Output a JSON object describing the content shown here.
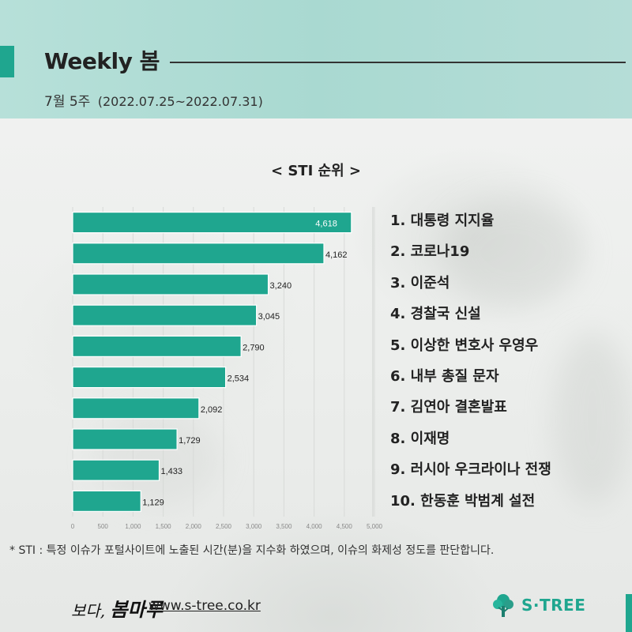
{
  "header": {
    "title": "Weekly 봄",
    "week": "7월 5주",
    "range": "(2022.07.25~2022.07.31)"
  },
  "chart_data": {
    "type": "bar",
    "orientation": "horizontal",
    "title": "< STI 순위 >",
    "categories": [
      "1",
      "2",
      "3",
      "4",
      "5",
      "6",
      "7",
      "8",
      "9",
      "10"
    ],
    "values": [
      4618,
      4162,
      3240,
      3045,
      2790,
      2534,
      2092,
      1729,
      1433,
      1129
    ],
    "value_labels": [
      "4,618",
      "4,162",
      "3,240",
      "3,045",
      "2,790",
      "2,534",
      "2,092",
      "1,729",
      "1,433",
      "1,129"
    ],
    "xlim": [
      0,
      5000
    ],
    "x_ticks": [
      0,
      500,
      1000,
      1500,
      2000,
      2500,
      3000,
      3500,
      4000,
      4500,
      5000
    ],
    "x_tick_labels": [
      "0",
      "500",
      "1,000",
      "1,500",
      "2,000",
      "2,500",
      "3,000",
      "3,500",
      "4,000",
      "4,500",
      "5,000"
    ],
    "grid": true,
    "bar_color": "#1fa68f"
  },
  "ranking": [
    "1. 대통령 지지율",
    "2. 코로나19",
    "3. 이준석",
    "4. 경찰국 신설",
    "5. 이상한 변호사 우영우",
    "6. 내부 총질 문자",
    "7. 김연아 결혼발표",
    "8. 이재명",
    "9. 러시아 우크라이나 전쟁",
    "10. 한동훈 박범계 설전"
  ],
  "footnote": "* STI : 특정 이슈가 포털사이트에 노출된 시간(분)을 지수화 하였으며, 이슈의 화제성 정도를 판단합니다.",
  "footer": {
    "brand_prefix": "보다,",
    "brand_name": "봄마루",
    "site": "www.s-tree.co.kr",
    "logo_text": "S·TREE"
  },
  "colors": {
    "accent": "#1fa68f",
    "header_bg": "#b0dcd4"
  },
  "icons": {
    "logo": "tree-logo-icon"
  }
}
